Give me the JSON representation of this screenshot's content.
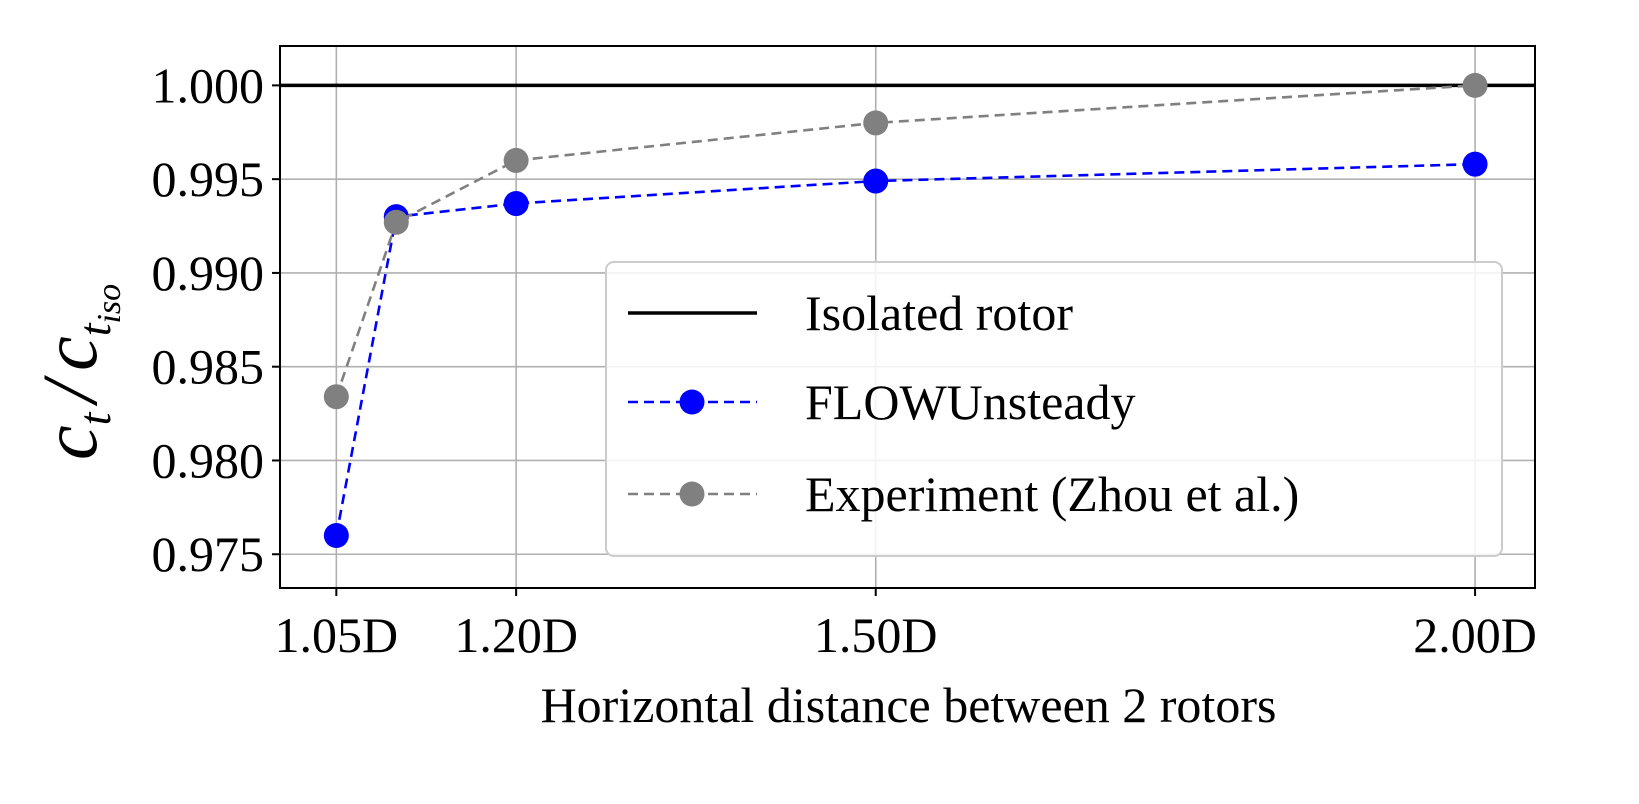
{
  "chart_data": {
    "type": "line",
    "title": "",
    "xlabel": "Horizontal distance between 2 rotors",
    "ylabel": {
      "numerator": "c",
      "numerator_sub": "t",
      "separator": "/",
      "denominator": "c",
      "denominator_sub": "t",
      "denominator_subsub": "iso"
    },
    "x_ticks": [
      {
        "value": 1.05,
        "label": "1.05D"
      },
      {
        "value": 1.2,
        "label": "1.20D"
      },
      {
        "value": 1.5,
        "label": "1.50D"
      },
      {
        "value": 2.0,
        "label": "2.00D"
      }
    ],
    "y_ticks": [
      {
        "value": 1.0,
        "label": "1.000"
      },
      {
        "value": 0.995,
        "label": "0.995"
      },
      {
        "value": 0.99,
        "label": "0.990"
      },
      {
        "value": 0.985,
        "label": "0.985"
      },
      {
        "value": 0.98,
        "label": "0.980"
      },
      {
        "value": 0.975,
        "label": "0.975"
      }
    ],
    "xlim": [
      1.003,
      2.05
    ],
    "ylim": [
      0.9732,
      1.0021
    ],
    "grid": true,
    "legend_position": "lower-right",
    "series": [
      {
        "name": "Isolated rotor",
        "style": "solid",
        "color": "#000000",
        "markers": false,
        "y_constant": 1.0
      },
      {
        "name": "FLOWUnsteady",
        "style": "dashed",
        "color": "#0000ff",
        "markers": true,
        "x": [
          1.05,
          1.1,
          1.2,
          1.5,
          2.0
        ],
        "y": [
          0.976,
          0.993,
          0.9937,
          0.9949,
          0.9958
        ]
      },
      {
        "name": "Experiment (Zhou et al.)",
        "style": "dashed",
        "color": "#808080",
        "markers": true,
        "x": [
          1.05,
          1.1,
          1.2,
          1.5,
          2.0
        ],
        "y": [
          0.9834,
          0.9927,
          0.996,
          0.998,
          1.0
        ]
      }
    ]
  }
}
